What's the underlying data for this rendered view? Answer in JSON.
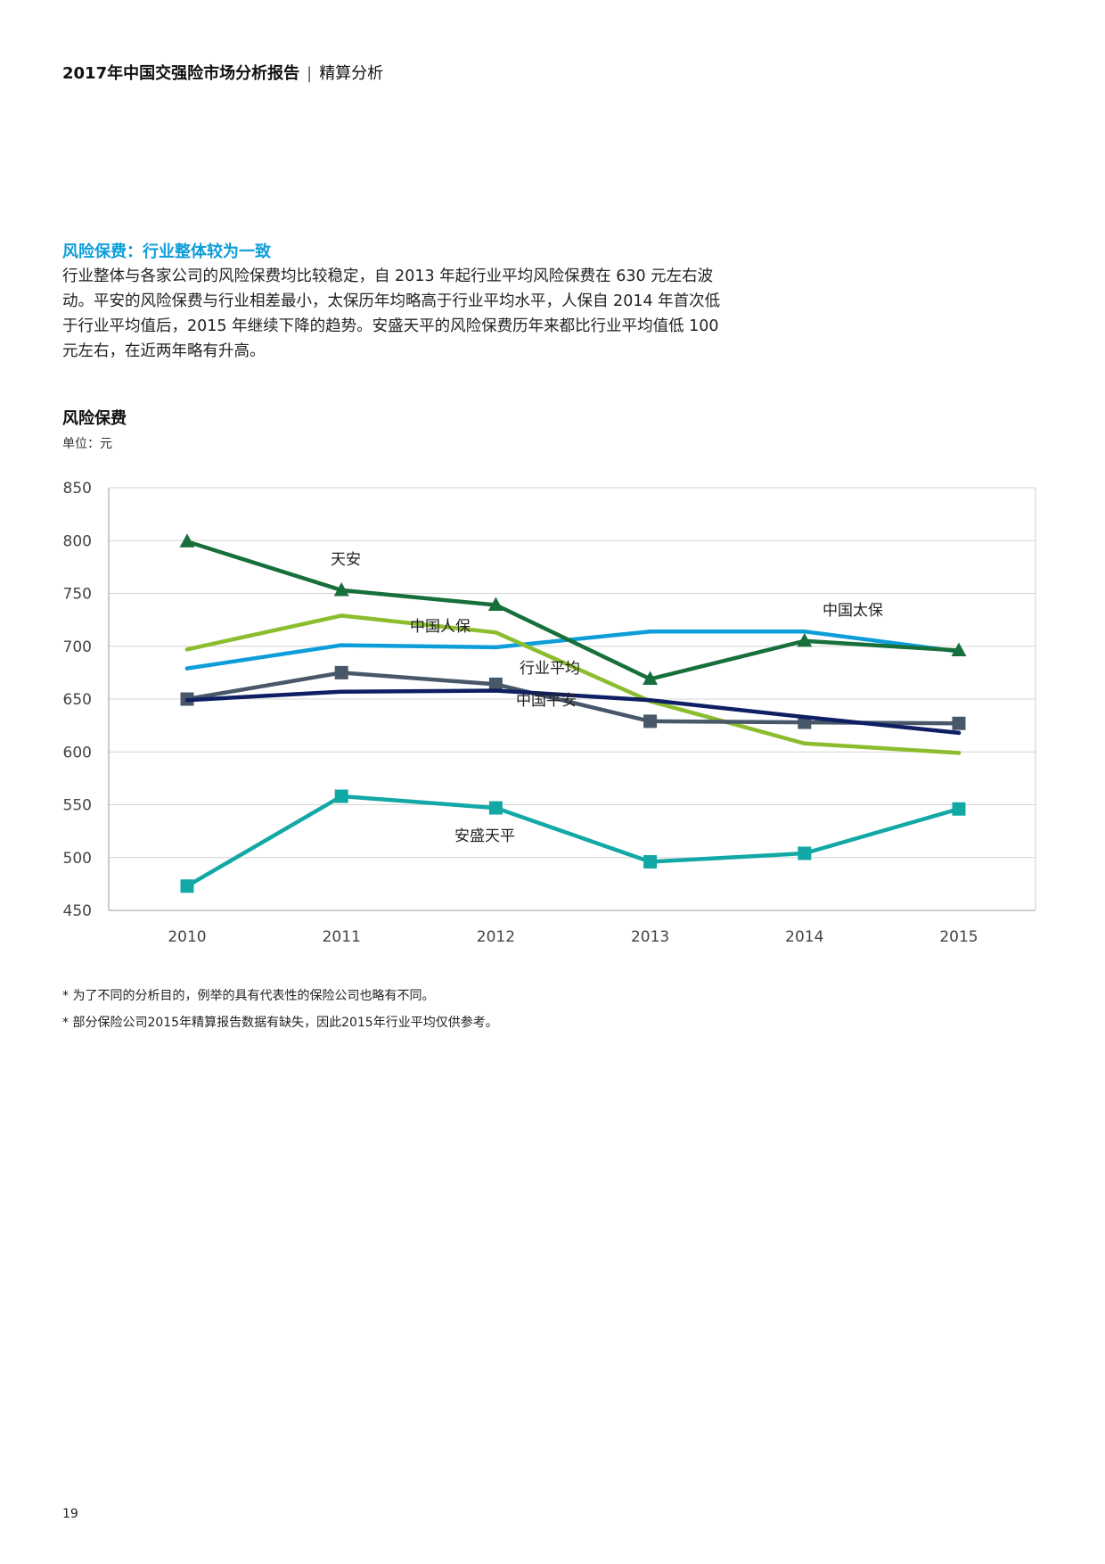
{
  "header": {
    "report_title": "2017年中国交强险市场分析报告",
    "separator": "|",
    "section": "精算分析"
  },
  "section": {
    "title": "风险保费：行业整体较为一致",
    "paragraph": "行业整体与各家公司的风险保费均比较稳定，自 2013 年起行业平均风险保费在 630 元左右波动。平安的风险保费与行业相差最小，太保历年均略高于行业平均水平，人保自 2014 年首次低于行业平均值后，2015 年继续下降的趋势。安盛天平的风险保费历年来都比行业平均值低 100 元左右，在近两年略有升高。"
  },
  "chart_title": "风险保费",
  "unit_label": "单位：元",
  "chart_data": {
    "type": "line",
    "title": "风险保费",
    "ylabel": "单位：元",
    "xlabel": "",
    "categories": [
      "2010",
      "2011",
      "2012",
      "2013",
      "2014",
      "2015"
    ],
    "ylim": [
      450,
      850
    ],
    "yticks": [
      850,
      800,
      750,
      700,
      650,
      600,
      550,
      500,
      450
    ],
    "grid": true,
    "series": [
      {
        "name": "中国太保",
        "label": "中国太保",
        "color": "#0d9ed9",
        "marker": "none",
        "values": [
          679,
          701,
          699,
          714,
          714,
          695
        ]
      },
      {
        "name": "中国人保",
        "label": "中国人保",
        "color": "#8bbd2e",
        "marker": "none",
        "values": [
          697,
          729,
          713,
          648,
          608,
          599
        ]
      },
      {
        "name": "天安",
        "label": "天安",
        "color": "#17703b",
        "marker": "triangle",
        "values": [
          799,
          753,
          739,
          669,
          705,
          696
        ]
      },
      {
        "name": "行业平均",
        "label": "行业平均",
        "color": "#485869",
        "marker": "square",
        "values": [
          650,
          675,
          664,
          629,
          628,
          627
        ]
      },
      {
        "name": "中国平安",
        "label": "中国平安",
        "color": "#0f1f63",
        "marker": "none",
        "values": [
          649,
          657,
          658,
          649,
          633,
          618
        ]
      },
      {
        "name": "安盛天平",
        "label": "安盛天平",
        "color": "#12a8a6",
        "marker": "square",
        "values": [
          473,
          558,
          547,
          496,
          504,
          546
        ]
      }
    ]
  },
  "footnotes": [
    "* 为了不同的分析目的，例举的具有代表性的保险公司也略有不同。",
    "* 部分保险公司2015年精算报告数据有缺失，因此2015年行业平均仅供参考。"
  ],
  "page_number": "19"
}
